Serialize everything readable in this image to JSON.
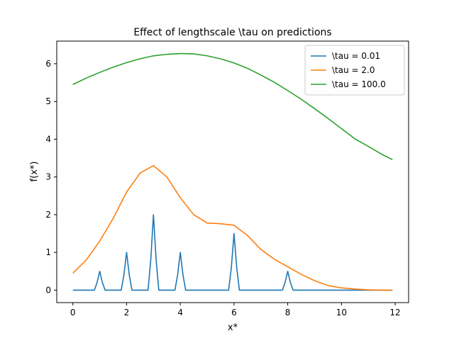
{
  "chart_data": {
    "type": "line",
    "title": "Effect of lengthscale \\tau on predictions",
    "xlabel": "x*",
    "ylabel": "f(x*)",
    "xlim": [
      -0.6,
      12.5
    ],
    "ylim": [
      -0.33,
      6.6
    ],
    "xticks": [
      0,
      2,
      4,
      6,
      8,
      10,
      12
    ],
    "yticks": [
      0,
      1,
      2,
      3,
      4,
      5,
      6
    ],
    "grid": false,
    "legend_position": "top-right",
    "series": [
      {
        "name": "\\tau = 0.01",
        "color": "#1f77b4",
        "x": [
          0,
          0.8,
          0.9,
          1.0,
          1.1,
          1.2,
          1.8,
          1.9,
          2.0,
          2.1,
          2.2,
          2.8,
          2.9,
          3.0,
          3.1,
          3.2,
          3.8,
          3.9,
          4.0,
          4.1,
          4.2,
          5.8,
          5.9,
          6.0,
          6.1,
          6.2,
          7.8,
          7.9,
          8.0,
          8.1,
          8.2,
          11.9
        ],
        "y": [
          0,
          0,
          0.2,
          0.5,
          0.2,
          0,
          0,
          0.4,
          1.0,
          0.4,
          0,
          0,
          0.8,
          2.0,
          0.8,
          0,
          0,
          0.4,
          1.0,
          0.4,
          0,
          0,
          0.6,
          1.5,
          0.6,
          0,
          0,
          0.2,
          0.5,
          0.2,
          0,
          0
        ]
      },
      {
        "name": "\\tau = 2.0",
        "color": "#ff7f0e",
        "x": [
          0,
          0.5,
          1.0,
          1.5,
          2.0,
          2.5,
          3.0,
          3.5,
          4.0,
          4.5,
          5.0,
          5.5,
          6.0,
          6.5,
          7.0,
          7.5,
          8.0,
          8.5,
          9.0,
          9.5,
          10.0,
          10.5,
          11.0,
          11.5,
          11.9
        ],
        "y": [
          0.45,
          0.8,
          1.3,
          1.9,
          2.6,
          3.1,
          3.3,
          3.0,
          2.45,
          2.0,
          1.78,
          1.76,
          1.72,
          1.45,
          1.08,
          0.82,
          0.62,
          0.42,
          0.25,
          0.12,
          0.06,
          0.03,
          0.01,
          0.0,
          0.0
        ]
      },
      {
        "name": "\\tau = 100.0",
        "color": "#2ca02c",
        "x": [
          0,
          0.5,
          1.0,
          1.5,
          2.0,
          2.5,
          3.0,
          3.5,
          4.0,
          4.5,
          5.0,
          5.5,
          6.0,
          6.5,
          7.0,
          7.5,
          8.0,
          8.5,
          9.0,
          9.5,
          10.0,
          10.5,
          11.0,
          11.5,
          11.9
        ],
        "y": [
          5.45,
          5.62,
          5.77,
          5.91,
          6.03,
          6.13,
          6.21,
          6.25,
          6.27,
          6.26,
          6.21,
          6.13,
          6.02,
          5.88,
          5.7,
          5.51,
          5.29,
          5.06,
          4.81,
          4.55,
          4.28,
          4.01,
          3.81,
          3.6,
          3.46
        ]
      }
    ]
  }
}
